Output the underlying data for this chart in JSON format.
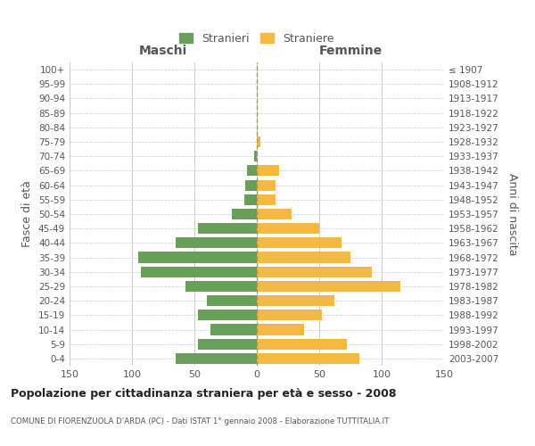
{
  "age_groups": [
    "0-4",
    "5-9",
    "10-14",
    "15-19",
    "20-24",
    "25-29",
    "30-34",
    "35-39",
    "40-44",
    "45-49",
    "50-54",
    "55-59",
    "60-64",
    "65-69",
    "70-74",
    "75-79",
    "80-84",
    "85-89",
    "90-94",
    "95-99",
    "100+"
  ],
  "birth_years": [
    "2003-2007",
    "1998-2002",
    "1993-1997",
    "1988-1992",
    "1983-1987",
    "1978-1982",
    "1973-1977",
    "1968-1972",
    "1963-1967",
    "1958-1962",
    "1953-1957",
    "1948-1952",
    "1943-1947",
    "1938-1942",
    "1933-1937",
    "1928-1932",
    "1923-1927",
    "1918-1922",
    "1913-1917",
    "1908-1912",
    "≤ 1907"
  ],
  "males": [
    65,
    47,
    37,
    47,
    40,
    57,
    93,
    95,
    65,
    47,
    20,
    10,
    9,
    8,
    2,
    0,
    0,
    0,
    0,
    0,
    0
  ],
  "females": [
    82,
    72,
    38,
    52,
    62,
    115,
    92,
    75,
    68,
    50,
    28,
    15,
    15,
    18,
    0,
    3,
    0,
    0,
    0,
    0,
    0
  ],
  "male_color": "#6a9e5b",
  "female_color": "#f5b942",
  "background_color": "#ffffff",
  "grid_color": "#cccccc",
  "title": "Popolazione per cittadinanza straniera per età e sesso - 2008",
  "subtitle": "COMUNE DI FIORENZUOLA D'ARDA (PC) - Dati ISTAT 1° gennaio 2008 - Elaborazione TUTTITALIA.IT",
  "ylabel_left": "Fasce di età",
  "ylabel_right": "Anni di nascita",
  "xlabel_left": "Maschi",
  "xlabel_right": "Femmine",
  "legend_males": "Stranieri",
  "legend_females": "Straniere",
  "xlim": 150
}
